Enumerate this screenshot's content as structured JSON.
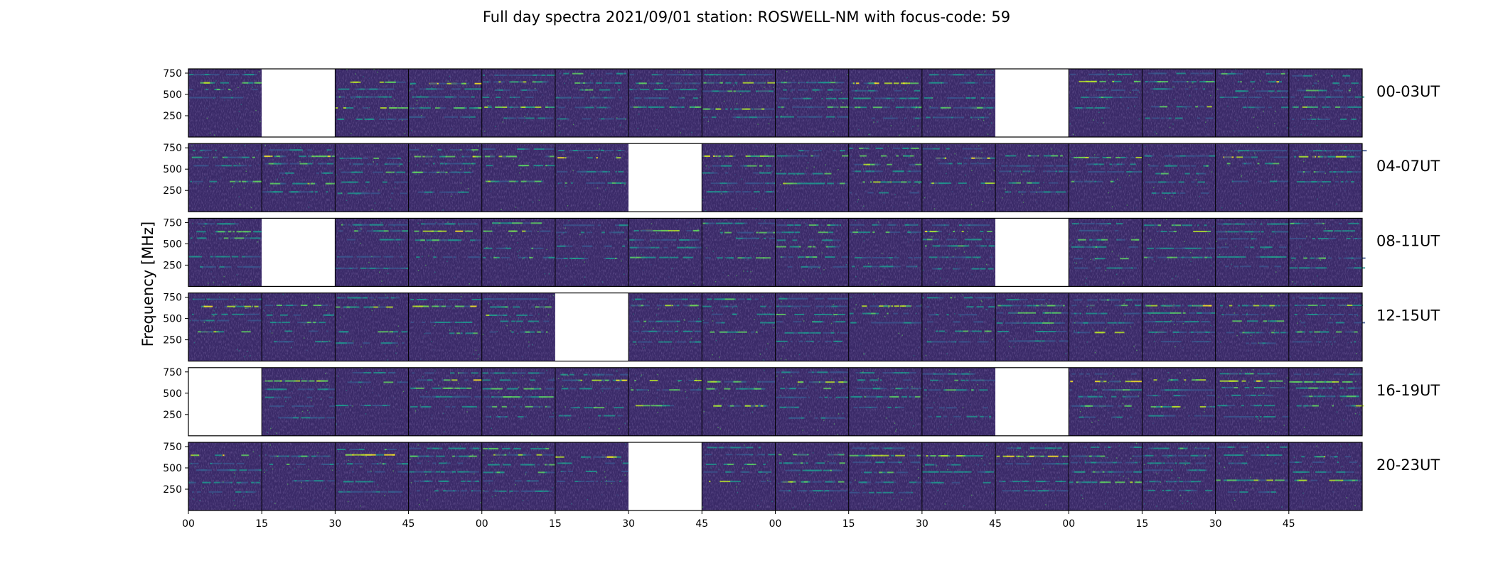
{
  "chart_data": {
    "type": "heatmap",
    "title": "Full day spectra 2021/09/01 station: ROSWELL-NM with focus-code: 59",
    "ylabel": "Frequency [MHz]",
    "xlabel": "",
    "colormap": "viridis",
    "ylim": [
      0,
      800
    ],
    "yticks": [
      "750",
      "500",
      "250"
    ],
    "ytick_values": [
      750,
      500,
      250
    ],
    "xticks": [
      "00",
      "15",
      "30",
      "45",
      "00",
      "15",
      "30",
      "45",
      "00",
      "15",
      "30",
      "45",
      "00",
      "15",
      "30",
      "45"
    ],
    "rows": [
      {
        "label": "00-03UT",
        "missing": [
          1,
          11
        ]
      },
      {
        "label": "04-07UT",
        "missing": [
          6
        ]
      },
      {
        "label": "08-11UT",
        "missing": [
          1,
          11
        ]
      },
      {
        "label": "12-15UT",
        "missing": [
          5
        ]
      },
      {
        "label": "16-19UT",
        "missing": [
          0,
          11
        ]
      },
      {
        "label": "20-23UT",
        "missing": [
          6
        ]
      }
    ],
    "panels_per_row": 16,
    "typical_bands_mhz": [
      {
        "freq": 650,
        "intensity": 0.8
      },
      {
        "freq": 560,
        "intensity": 0.5
      },
      {
        "freq": 740,
        "intensity": 0.4
      },
      {
        "freq": 350,
        "intensity": 0.6
      },
      {
        "freq": 470,
        "intensity": 0.4
      },
      {
        "freq": 230,
        "intensity": 0.3
      }
    ]
  }
}
